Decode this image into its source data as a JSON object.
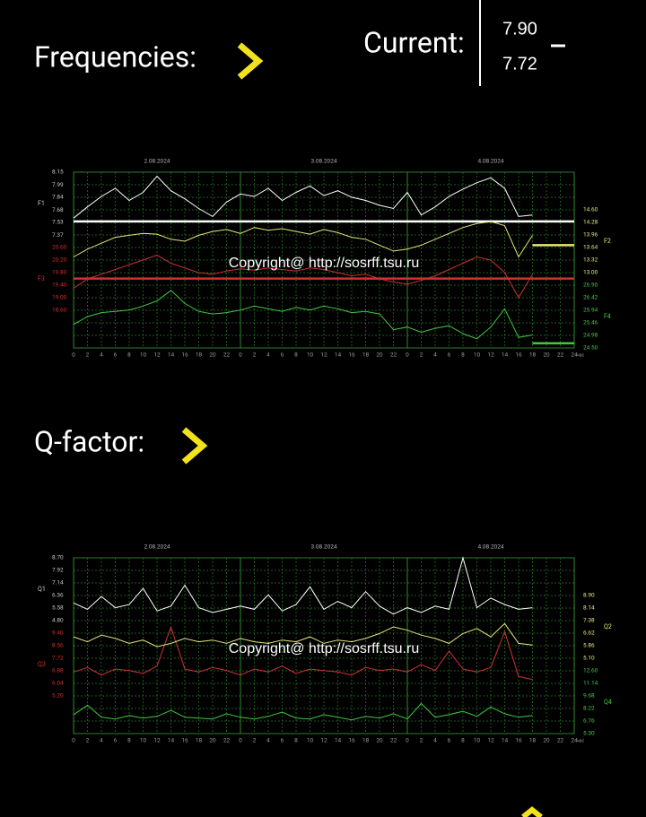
{
  "page": {
    "frequencies_label": "Frequencies:",
    "current_label": "Current:",
    "current_values": [
      "7.90",
      "7.72"
    ],
    "qfactor_label": "Q-factor:"
  },
  "chart_data": [
    {
      "type": "line",
      "watermark": "Copyright@ http://sosrff.tsu.ru",
      "grid": true,
      "xlabel": "час",
      "xlim": [
        0,
        72
      ],
      "xticks": [
        0,
        2,
        4,
        6,
        8,
        10,
        12,
        14,
        16,
        18,
        20,
        22,
        {
          "value": 24,
          "label": "0"
        },
        {
          "value": 26,
          "label": "2"
        },
        {
          "value": 28,
          "label": "4"
        },
        {
          "value": 30,
          "label": "6"
        },
        {
          "value": 32,
          "label": "8"
        },
        {
          "value": 34,
          "label": "10"
        },
        {
          "value": 36,
          "label": "12"
        },
        {
          "value": 38,
          "label": "14"
        },
        {
          "value": 40,
          "label": "16"
        },
        {
          "value": 42,
          "label": "18"
        },
        {
          "value": 44,
          "label": "20"
        },
        {
          "value": 46,
          "label": "22"
        },
        {
          "value": 48,
          "label": "0"
        },
        {
          "value": 50,
          "label": "2"
        },
        {
          "value": 52,
          "label": "4"
        },
        {
          "value": 54,
          "label": "6"
        },
        {
          "value": 56,
          "label": "8"
        },
        {
          "value": 58,
          "label": "10"
        },
        {
          "value": 60,
          "label": "12"
        },
        {
          "value": 62,
          "label": "14"
        },
        {
          "value": 64,
          "label": "16"
        },
        {
          "value": 66,
          "label": "18"
        },
        {
          "value": 68,
          "label": "20"
        },
        {
          "value": 70,
          "label": "22"
        },
        {
          "value": 72,
          "label": "24"
        }
      ],
      "dates": [
        {
          "x": 12,
          "label": "2.08.2024"
        },
        {
          "x": 36,
          "label": "3.08.2024"
        },
        {
          "x": 60,
          "label": "4.08.2024"
        }
      ],
      "x": [
        0,
        2,
        4,
        6,
        8,
        10,
        12,
        14,
        16,
        18,
        20,
        22,
        24,
        26,
        28,
        30,
        32,
        34,
        36,
        38,
        40,
        42,
        44,
        46,
        48,
        50,
        52,
        54,
        56,
        58,
        60,
        62,
        64,
        66
      ],
      "series": [
        {
          "name": "F1",
          "color": "#ffffff",
          "side": "left",
          "ylim": [
            5.97,
            8.15
          ],
          "yticks": [
            8.15,
            7.99,
            7.84,
            7.68,
            7.53,
            7.37
          ],
          "current": 7.54,
          "current_span": "full",
          "values": [
            7.58,
            7.72,
            7.85,
            7.95,
            7.8,
            7.9,
            8.1,
            7.92,
            7.82,
            7.7,
            7.6,
            7.78,
            7.88,
            7.85,
            7.95,
            7.8,
            7.9,
            7.98,
            7.86,
            7.92,
            7.84,
            7.8,
            7.74,
            7.7,
            7.9,
            7.62,
            7.72,
            7.85,
            7.94,
            8.02,
            8.08,
            7.95,
            7.6,
            7.62
          ]
        },
        {
          "name": "F3",
          "color": "#d03030",
          "side": "left",
          "ylim": [
            17.4,
            23.0
          ],
          "yticks": [
            {
              "value": 20.6,
              "label": "20.60"
            },
            {
              "value": 20.2,
              "label": "20.20"
            },
            {
              "value": 19.8,
              "label": "19.80"
            },
            {
              "value": 19.4,
              "label": "19.40"
            },
            {
              "value": 19.0,
              "label": "19.00"
            },
            {
              "value": 18.6,
              "label": "18.60"
            }
          ],
          "current": 19.61,
          "current_span": "full",
          "values": [
            19.3,
            19.6,
            19.75,
            19.9,
            20.05,
            20.2,
            20.36,
            20.1,
            19.95,
            19.8,
            19.75,
            19.85,
            19.92,
            19.88,
            19.95,
            19.9,
            19.85,
            19.95,
            19.9,
            19.8,
            19.7,
            19.75,
            19.6,
            19.5,
            19.43,
            19.55,
            19.7,
            19.9,
            20.1,
            20.3,
            20.2,
            19.8,
            19.0,
            19.75
          ]
        },
        {
          "name": "F2",
          "color": "#e6e67a",
          "side": "right",
          "ylim": [
            11.08,
            15.56
          ],
          "yticks": [
            {
              "value": 14.6,
              "label": "14.60"
            },
            14.28,
            13.96,
            13.64,
            13.32,
            {
              "value": 13.0,
              "label": "13.00"
            }
          ],
          "current": 13.7,
          "current_span": "tail",
          "values": [
            13.4,
            13.6,
            13.75,
            13.9,
            13.95,
            14.0,
            13.98,
            13.85,
            13.8,
            13.95,
            14.05,
            14.1,
            14.0,
            14.15,
            14.08,
            14.12,
            14.05,
            13.98,
            14.1,
            14.02,
            13.9,
            13.85,
            13.7,
            13.55,
            13.6,
            13.7,
            13.85,
            14.0,
            14.15,
            14.25,
            14.3,
            14.2,
            13.4,
            13.95
          ]
        },
        {
          "name": "F4",
          "color": "#40c840",
          "side": "right",
          "ylim": [
            24.5,
            31.22
          ],
          "yticks": [
            {
              "value": 26.9,
              "label": "26.90"
            },
            26.42,
            25.94,
            25.46,
            24.98,
            {
              "value": 24.5,
              "label": "24.50"
            }
          ],
          "current": 24.68,
          "current_span": "tail",
          "values": [
            25.4,
            25.7,
            25.85,
            25.9,
            25.95,
            26.1,
            26.3,
            26.7,
            26.2,
            25.9,
            25.8,
            25.85,
            25.95,
            26.1,
            26.0,
            25.9,
            26.05,
            25.95,
            26.1,
            26.0,
            25.85,
            25.9,
            25.8,
            25.2,
            25.3,
            25.1,
            25.25,
            25.35,
            25.05,
            24.85,
            25.3,
            26.0,
            24.9,
            25.0
          ]
        }
      ]
    },
    {
      "type": "line",
      "watermark": "Copyright@ http://sosrff.tsu.ru",
      "grid": true,
      "xlabel": "час",
      "xlim": [
        0,
        72
      ],
      "xticks": [
        0,
        2,
        4,
        6,
        8,
        10,
        12,
        14,
        16,
        18,
        20,
        22,
        {
          "value": 24,
          "label": "0"
        },
        {
          "value": 26,
          "label": "2"
        },
        {
          "value": 28,
          "label": "4"
        },
        {
          "value": 30,
          "label": "6"
        },
        {
          "value": 32,
          "label": "8"
        },
        {
          "value": 34,
          "label": "10"
        },
        {
          "value": 36,
          "label": "12"
        },
        {
          "value": 38,
          "label": "14"
        },
        {
          "value": 40,
          "label": "16"
        },
        {
          "value": 42,
          "label": "18"
        },
        {
          "value": 44,
          "label": "20"
        },
        {
          "value": 46,
          "label": "22"
        },
        {
          "value": 48,
          "label": "0"
        },
        {
          "value": 50,
          "label": "2"
        },
        {
          "value": 52,
          "label": "4"
        },
        {
          "value": 54,
          "label": "6"
        },
        {
          "value": 56,
          "label": "8"
        },
        {
          "value": 58,
          "label": "10"
        },
        {
          "value": 60,
          "label": "12"
        },
        {
          "value": 62,
          "label": "14"
        },
        {
          "value": 64,
          "label": "16"
        },
        {
          "value": 66,
          "label": "18"
        },
        {
          "value": 68,
          "label": "20"
        },
        {
          "value": 70,
          "label": "22"
        },
        {
          "value": 72,
          "label": "24"
        }
      ],
      "dates": [
        {
          "x": 12,
          "label": "2.08.2024"
        },
        {
          "x": 36,
          "label": "3.08.2024"
        },
        {
          "x": 60,
          "label": "4.08.2024"
        }
      ],
      "x": [
        0,
        2,
        4,
        6,
        8,
        10,
        12,
        14,
        16,
        18,
        20,
        22,
        24,
        26,
        28,
        30,
        32,
        34,
        36,
        38,
        40,
        42,
        44,
        46,
        48,
        50,
        52,
        54,
        56,
        58,
        60,
        62,
        64,
        66
      ],
      "series": [
        {
          "name": "Q1",
          "color": "#ffffff",
          "side": "left",
          "ylim": [
            -2.22,
            8.7
          ],
          "yticks": [
            {
              "value": 8.7,
              "label": "8.70"
            },
            7.92,
            7.14,
            6.36,
            5.58,
            {
              "value": 4.8,
              "label": "4.80"
            }
          ],
          "values": [
            5.9,
            5.5,
            6.3,
            5.6,
            5.8,
            6.8,
            5.4,
            5.7,
            7.0,
            5.6,
            5.3,
            5.5,
            5.7,
            5.5,
            6.4,
            5.4,
            5.8,
            6.9,
            5.5,
            6.0,
            5.6,
            6.6,
            5.7,
            5.2,
            5.6,
            5.3,
            5.7,
            5.5,
            8.7,
            5.6,
            6.2,
            5.8,
            5.5,
            5.6
          ]
        },
        {
          "name": "Q3",
          "color": "#d03030",
          "side": "left",
          "ylim": [
            2.68,
            14.44
          ],
          "yticks": [
            {
              "value": 9.4,
              "label": "9.40"
            },
            8.56,
            7.72,
            6.88,
            6.04,
            {
              "value": 5.2,
              "label": "5.20"
            }
          ],
          "values": [
            6.8,
            7.1,
            6.6,
            7.0,
            6.9,
            6.7,
            7.2,
            9.8,
            7.0,
            6.8,
            7.1,
            6.9,
            6.6,
            7.0,
            6.8,
            7.2,
            6.7,
            7.0,
            6.9,
            6.8,
            6.6,
            7.1,
            6.9,
            7.0,
            6.8,
            7.3,
            6.9,
            8.2,
            7.0,
            6.8,
            7.1,
            9.5,
            6.5,
            6.3
          ]
        },
        {
          "name": "Q2",
          "color": "#e6e67a",
          "side": "right",
          "ylim": [
            0.54,
            11.18
          ],
          "yticks": [
            {
              "value": 8.9,
              "label": "8.90"
            },
            8.14,
            7.38,
            6.62,
            5.86,
            {
              "value": 5.1,
              "label": "5.10"
            }
          ],
          "values": [
            6.4,
            6.1,
            6.5,
            6.3,
            6.0,
            6.2,
            5.8,
            6.0,
            6.3,
            6.1,
            6.2,
            6.0,
            6.3,
            6.1,
            6.0,
            6.2,
            6.1,
            6.4,
            6.0,
            6.2,
            6.1,
            6.3,
            6.6,
            7.0,
            6.8,
            6.5,
            6.3,
            6.0,
            6.6,
            6.9,
            6.4,
            7.2,
            6.0,
            5.9
          ]
        },
        {
          "name": "Q4",
          "color": "#40c840",
          "side": "right",
          "ylim": [
            5.3,
            25.74
          ],
          "yticks": [
            {
              "value": 12.6,
              "label": "12.60"
            },
            11.14,
            9.68,
            8.22,
            6.76,
            {
              "value": 5.3,
              "label": "5.30"
            }
          ],
          "values": [
            7.5,
            8.6,
            7.2,
            7.0,
            7.4,
            7.1,
            7.3,
            8.0,
            7.2,
            7.1,
            7.0,
            7.6,
            7.2,
            7.0,
            7.3,
            7.8,
            7.1,
            7.0,
            7.5,
            7.2,
            6.9,
            7.3,
            7.1,
            7.6,
            7.0,
            8.8,
            7.2,
            7.5,
            7.9,
            7.3,
            8.4,
            7.6,
            7.2,
            7.4
          ]
        }
      ]
    }
  ]
}
